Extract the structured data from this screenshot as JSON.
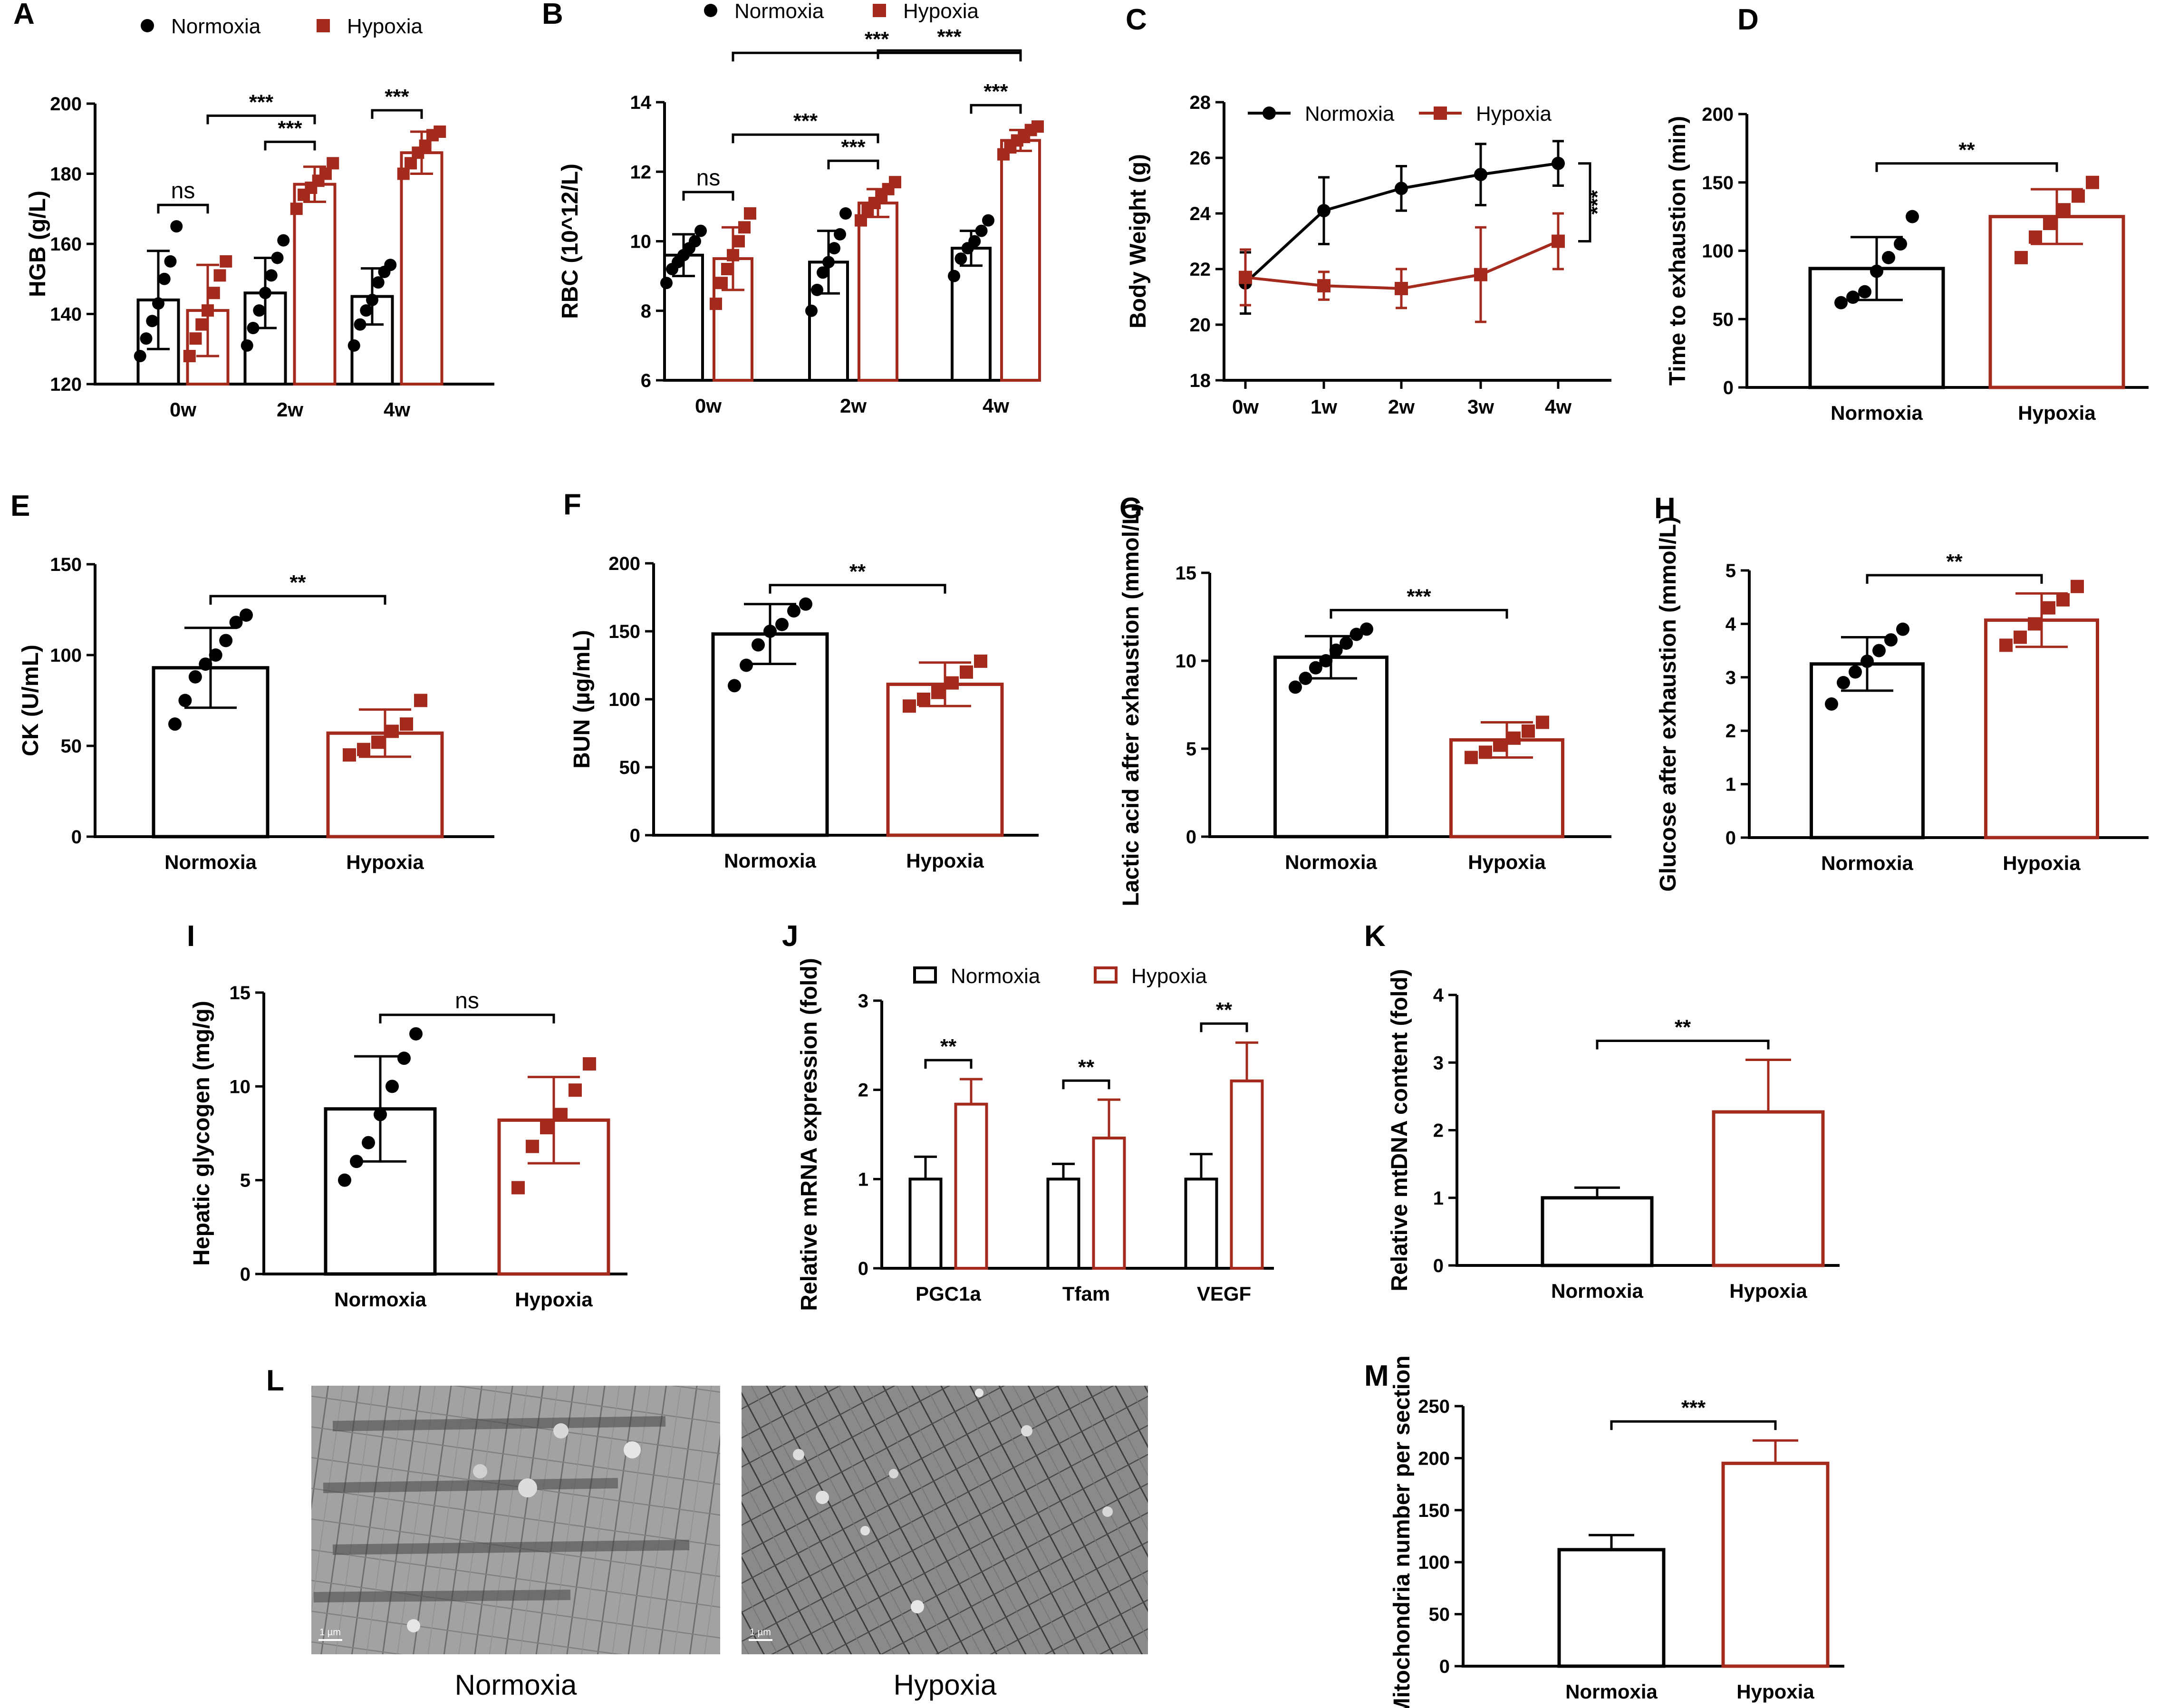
{
  "figure": {
    "colors": {
      "normoxia": "#000000",
      "hypoxia": "#A52A1E"
    },
    "icons": {
      "normoxia_marker": "circle",
      "hypoxia_marker": "square"
    }
  },
  "chart_data": [
    {
      "panel": "A",
      "type": "bar",
      "ylabel": "HGB (g/L)",
      "ylim": [
        120,
        200
      ],
      "yticks": [
        "120",
        "140",
        "160",
        "180",
        "200"
      ],
      "categories": [
        "0w",
        "2w",
        "4w"
      ],
      "legend": [
        "Normoxia",
        "Hypoxia"
      ],
      "series": [
        {
          "name": "Normoxia",
          "values": [
            144,
            146,
            145
          ],
          "sd": [
            14,
            10,
            8
          ],
          "points": [
            [
              128,
              133,
              138,
              143,
              150,
              155,
              165
            ],
            [
              131,
              136,
              141,
              146,
              151,
              156,
              161
            ],
            [
              131,
              137,
              141,
              144,
              149,
              152,
              154
            ]
          ]
        },
        {
          "name": "Hypoxia",
          "values": [
            141,
            177,
            186
          ],
          "sd": [
            13,
            5,
            6
          ],
          "points": [
            [
              128,
              133,
              137,
              141,
              146,
              151,
              155
            ],
            [
              170,
              174,
              176,
              178,
              180,
              183
            ],
            [
              180,
              183,
              186,
              188,
              191,
              192
            ]
          ]
        }
      ],
      "annotations": [
        {
          "label": "ns",
          "from": [
            0,
            "Normoxia"
          ],
          "to": [
            0,
            "Hypoxia"
          ]
        },
        {
          "label": "***",
          "from": [
            1,
            "Normoxia"
          ],
          "to": [
            1,
            "Hypoxia"
          ]
        },
        {
          "label": "***",
          "from": [
            0,
            "Hypoxia"
          ],
          "to": [
            1,
            "Hypoxia"
          ]
        },
        {
          "label": "***",
          "from": [
            2,
            "Normoxia"
          ],
          "to": [
            2,
            "Hypoxia"
          ]
        }
      ]
    },
    {
      "panel": "B",
      "type": "bar",
      "ylabel": "RBC (10^12/L)",
      "ylim": [
        6,
        14
      ],
      "yticks": [
        "6",
        "8",
        "10",
        "12",
        "14"
      ],
      "categories": [
        "0w",
        "2w",
        "4w"
      ],
      "legend": [
        "Normoxia",
        "Hypoxia"
      ],
      "series": [
        {
          "name": "Normoxia",
          "values": [
            9.6,
            9.4,
            9.8
          ],
          "sd": [
            0.6,
            0.9,
            0.5
          ],
          "points": [
            [
              8.8,
              9.2,
              9.4,
              9.6,
              9.8,
              10.0,
              10.3
            ],
            [
              8.0,
              8.6,
              9.1,
              9.4,
              9.8,
              10.2,
              10.8
            ],
            [
              9.0,
              9.5,
              9.8,
              10.0,
              10.3,
              10.6
            ]
          ]
        },
        {
          "name": "Hypoxia",
          "values": [
            9.5,
            11.1,
            12.9
          ],
          "sd": [
            0.9,
            0.4,
            0.3
          ],
          "points": [
            [
              8.2,
              8.8,
              9.2,
              9.6,
              10.0,
              10.4,
              10.8
            ],
            [
              10.6,
              10.9,
              11.1,
              11.3,
              11.5,
              11.7
            ],
            [
              12.5,
              12.7,
              12.9,
              13.0,
              13.2,
              13.3
            ]
          ]
        }
      ],
      "annotations": [
        {
          "label": "ns",
          "from": [
            0,
            "Normoxia"
          ],
          "to": [
            0,
            "Hypoxia"
          ]
        },
        {
          "label": "***",
          "from": [
            1,
            "Normoxia"
          ],
          "to": [
            1,
            "Hypoxia"
          ]
        },
        {
          "label": "***",
          "from": [
            0,
            "Hypoxia"
          ],
          "to": [
            1,
            "Hypoxia"
          ]
        },
        {
          "label": "***",
          "from": [
            2,
            "Normoxia"
          ],
          "to": [
            2,
            "Hypoxia"
          ]
        },
        {
          "label": "***",
          "from": [
            1,
            "Hypoxia"
          ],
          "to": [
            2,
            "Hypoxia"
          ]
        },
        {
          "label": "***",
          "from": [
            0,
            "Hypoxia"
          ],
          "to": [
            2,
            "Hypoxia"
          ]
        }
      ]
    },
    {
      "panel": "C",
      "type": "line",
      "ylabel": "Body Weight (g)",
      "ylim": [
        18,
        28
      ],
      "yticks": [
        "18",
        "20",
        "22",
        "24",
        "26",
        "28"
      ],
      "x": [
        "0w",
        "1w",
        "2w",
        "3w",
        "4w"
      ],
      "legend": [
        "Normoxia",
        "Hypoxia"
      ],
      "series": [
        {
          "name": "Normoxia",
          "values": [
            21.5,
            24.1,
            24.9,
            25.4,
            25.8
          ],
          "sd": [
            1.1,
            1.2,
            0.8,
            1.1,
            0.8
          ]
        },
        {
          "name": "Hypoxia",
          "values": [
            21.7,
            21.4,
            21.3,
            21.8,
            23.0
          ],
          "sd": [
            1.0,
            0.5,
            0.7,
            1.7,
            1.0
          ]
        }
      ],
      "annotations": [
        {
          "label": "***",
          "note": "bracket"
        }
      ]
    },
    {
      "panel": "D",
      "type": "bar",
      "ylabel": "Time to exhaustion (min)",
      "ylim": [
        0,
        200
      ],
      "yticks": [
        "0",
        "50",
        "100",
        "150",
        "200"
      ],
      "categories": [
        "Normoxia",
        "Hypoxia"
      ],
      "values": [
        87,
        125
      ],
      "sd": [
        23,
        20
      ],
      "points": [
        [
          62,
          66,
          70,
          85,
          95,
          105,
          125
        ],
        [
          95,
          110,
          120,
          130,
          140,
          150
        ]
      ],
      "annotations": [
        {
          "label": "**"
        }
      ]
    },
    {
      "panel": "E",
      "type": "bar",
      "ylabel": "CK (U/mL)",
      "ylim": [
        0,
        150
      ],
      "yticks": [
        "0",
        "50",
        "100",
        "150"
      ],
      "categories": [
        "Normoxia",
        "Hypoxia"
      ],
      "values": [
        93,
        57
      ],
      "sd": [
        22,
        13
      ],
      "points": [
        [
          62,
          75,
          88,
          95,
          100,
          108,
          118,
          122
        ],
        [
          45,
          48,
          52,
          58,
          62,
          75
        ]
      ],
      "annotations": [
        {
          "label": "**"
        }
      ]
    },
    {
      "panel": "F",
      "type": "bar",
      "ylabel": "BUN (µg/mL)",
      "ylim": [
        0,
        200
      ],
      "yticks": [
        "0",
        "50",
        "100",
        "150",
        "200"
      ],
      "categories": [
        "Normoxia",
        "Hypoxia"
      ],
      "values": [
        148,
        111
      ],
      "sd": [
        22,
        16
      ],
      "points": [
        [
          110,
          125,
          140,
          150,
          155,
          165,
          170
        ],
        [
          95,
          100,
          105,
          112,
          120,
          128
        ]
      ],
      "annotations": [
        {
          "label": "**"
        }
      ]
    },
    {
      "panel": "G",
      "type": "bar",
      "ylabel": "Lactic acid after exhaustion (mmol/L)",
      "ylim": [
        0,
        15
      ],
      "yticks": [
        "0",
        "5",
        "10",
        "15"
      ],
      "categories": [
        "Normoxia",
        "Hypoxia"
      ],
      "values": [
        10.2,
        5.5
      ],
      "sd": [
        1.2,
        1.0
      ],
      "points": [
        [
          8.5,
          9.0,
          9.6,
          10.0,
          10.6,
          11.0,
          11.5,
          11.8
        ],
        [
          4.5,
          4.8,
          5.2,
          5.6,
          6.0,
          6.5
        ]
      ],
      "annotations": [
        {
          "label": "***"
        }
      ]
    },
    {
      "panel": "H",
      "type": "bar",
      "ylabel": "Glucose after exhaustion (mmol/L)",
      "ylim": [
        0,
        5
      ],
      "yticks": [
        "0",
        "1",
        "2",
        "3",
        "4",
        "5"
      ],
      "categories": [
        "Normoxia",
        "Hypoxia"
      ],
      "values": [
        3.25,
        4.07
      ],
      "sd": [
        0.5,
        0.5
      ],
      "points": [
        [
          2.5,
          2.9,
          3.1,
          3.3,
          3.5,
          3.7,
          3.9
        ],
        [
          3.6,
          3.75,
          4.0,
          4.3,
          4.45,
          4.7
        ]
      ],
      "annotations": [
        {
          "label": "**"
        }
      ]
    },
    {
      "panel": "I",
      "type": "bar",
      "ylabel": "Hepatic glycogen (mg/g)",
      "ylim": [
        0,
        15
      ],
      "yticks": [
        "0",
        "5",
        "10",
        "15"
      ],
      "categories": [
        "Normoxia",
        "Hypoxia"
      ],
      "values": [
        8.8,
        8.2
      ],
      "sd": [
        2.8,
        2.3
      ],
      "points": [
        [
          5.0,
          6.0,
          7.0,
          8.5,
          10.0,
          11.5,
          12.8
        ],
        [
          4.6,
          6.8,
          7.8,
          8.5,
          9.8,
          11.2
        ]
      ],
      "annotations": [
        {
          "label": "ns"
        }
      ]
    },
    {
      "panel": "J",
      "type": "bar",
      "ylabel": "Relative mRNA expression (fold)",
      "ylim": [
        0,
        3
      ],
      "yticks": [
        "0",
        "1",
        "2",
        "3"
      ],
      "categories": [
        "PGC1a",
        "Tfam",
        "VEGF"
      ],
      "legend": [
        "Normoxia",
        "Hypoxia"
      ],
      "series": [
        {
          "name": "Normoxia",
          "values": [
            1.0,
            1.0,
            1.0
          ],
          "sd": [
            0.25,
            0.17,
            0.28
          ]
        },
        {
          "name": "Hypoxia",
          "values": [
            1.84,
            1.46,
            2.1
          ],
          "sd": [
            0.28,
            0.43,
            0.43
          ]
        }
      ],
      "annotations": [
        {
          "label": "**"
        },
        {
          "label": "**"
        },
        {
          "label": "**"
        }
      ]
    },
    {
      "panel": "K",
      "type": "bar",
      "ylabel": "Relative mtDNA content (fold)",
      "ylim": [
        0,
        4
      ],
      "yticks": [
        "0",
        "1",
        "2",
        "3",
        "4"
      ],
      "categories": [
        "Normoxia",
        "Hypoxia"
      ],
      "values": [
        1.0,
        2.27
      ],
      "sd": [
        0.15,
        0.77
      ],
      "annotations": [
        {
          "label": "**"
        }
      ]
    },
    {
      "panel": "M",
      "type": "bar",
      "ylabel": "Mitochondria number per section",
      "ylim": [
        0,
        250
      ],
      "yticks": [
        "0",
        "50",
        "100",
        "150",
        "200",
        "250"
      ],
      "categories": [
        "Normoxia",
        "Hypoxia"
      ],
      "values": [
        112,
        195
      ],
      "sd": [
        14,
        22
      ],
      "annotations": [
        {
          "label": "***"
        }
      ]
    }
  ],
  "panel_L": {
    "label": "L",
    "images": [
      {
        "caption": "Normoxia",
        "scalebar": "1 µm"
      },
      {
        "caption": "Hypoxia",
        "scalebar": "1 µm"
      }
    ]
  }
}
